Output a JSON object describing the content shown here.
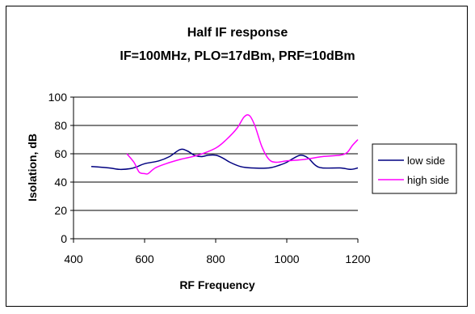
{
  "chart_data": {
    "type": "line",
    "title": [
      "Half IF response",
      "IF=100MHz, PLO=17dBm, PRF=10dBm"
    ],
    "xlabel": "RF Frequency",
    "ylabel": "Isolation, dB",
    "xlim": [
      400,
      1200
    ],
    "ylim": [
      0,
      100
    ],
    "xticks": [
      400,
      600,
      800,
      1000,
      1200
    ],
    "yticks": [
      0,
      20,
      40,
      60,
      80,
      100
    ],
    "grid": "horizontal",
    "legend_position": "right",
    "series": [
      {
        "name": "low side",
        "color": "#000080",
        "points": [
          [
            450,
            51
          ],
          [
            500,
            50
          ],
          [
            530,
            49
          ],
          [
            560,
            49.5
          ],
          [
            580,
            51
          ],
          [
            600,
            53
          ],
          [
            640,
            55
          ],
          [
            670,
            58
          ],
          [
            700,
            63
          ],
          [
            720,
            62
          ],
          [
            740,
            59
          ],
          [
            760,
            58
          ],
          [
            780,
            59
          ],
          [
            800,
            59
          ],
          [
            820,
            57
          ],
          [
            840,
            54
          ],
          [
            870,
            51
          ],
          [
            900,
            50
          ],
          [
            950,
            50
          ],
          [
            980,
            52
          ],
          [
            1000,
            54
          ],
          [
            1020,
            57
          ],
          [
            1040,
            59
          ],
          [
            1060,
            57
          ],
          [
            1080,
            52
          ],
          [
            1100,
            50
          ],
          [
            1150,
            50
          ],
          [
            1180,
            49
          ],
          [
            1200,
            50
          ]
        ]
      },
      {
        "name": "high side",
        "color": "#ff00ff",
        "points": [
          [
            550,
            60
          ],
          [
            570,
            54
          ],
          [
            585,
            47
          ],
          [
            600,
            46
          ],
          [
            610,
            46
          ],
          [
            630,
            50
          ],
          [
            660,
            53
          ],
          [
            700,
            56
          ],
          [
            750,
            59
          ],
          [
            800,
            64
          ],
          [
            830,
            70
          ],
          [
            860,
            78
          ],
          [
            880,
            86
          ],
          [
            895,
            87
          ],
          [
            910,
            80
          ],
          [
            930,
            65
          ],
          [
            950,
            56
          ],
          [
            970,
            54
          ],
          [
            1000,
            55
          ],
          [
            1050,
            56
          ],
          [
            1100,
            58
          ],
          [
            1150,
            59
          ],
          [
            1170,
            61
          ],
          [
            1185,
            66
          ],
          [
            1200,
            70
          ]
        ]
      }
    ]
  }
}
